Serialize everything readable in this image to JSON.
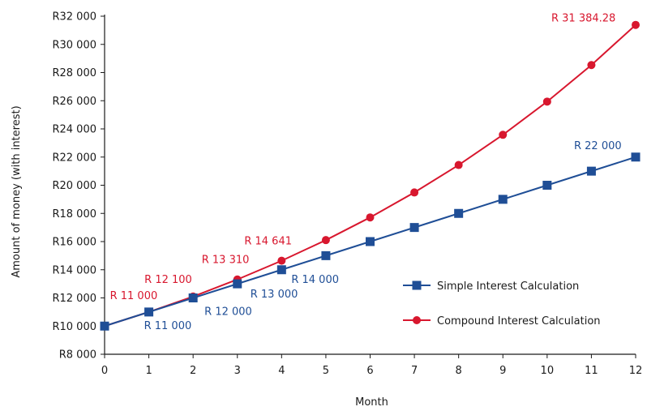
{
  "chart_data": {
    "type": "line",
    "title": "",
    "xlabel": "Month",
    "ylabel": "Amount of money (with interest)",
    "x": [
      0,
      1,
      2,
      3,
      4,
      5,
      6,
      7,
      8,
      9,
      10,
      11,
      12
    ],
    "xlim": [
      0,
      12
    ],
    "ylim": [
      8000,
      32000
    ],
    "y_ticks": [
      8000,
      10000,
      12000,
      14000,
      16000,
      18000,
      20000,
      22000,
      24000,
      26000,
      28000,
      30000,
      32000
    ],
    "y_tick_labels": [
      "R8 000",
      "R10 000",
      "R12 000",
      "R14 000",
      "R16 000",
      "R18 000",
      "R20 000",
      "R22 000",
      "R24 000",
      "R26 000",
      "R28 000",
      "R30 000",
      "R32 000"
    ],
    "x_tick_labels": [
      "0",
      "1",
      "2",
      "3",
      "4",
      "5",
      "6",
      "7",
      "8",
      "9",
      "10",
      "11",
      "12"
    ],
    "grid": false,
    "legend_position": "right",
    "series": [
      {
        "name": "Simple Interest Calculation",
        "color": "#1f4e96",
        "marker": "square",
        "values": [
          10000,
          11000,
          12000,
          13000,
          14000,
          15000,
          16000,
          17000,
          18000,
          19000,
          20000,
          21000,
          22000
        ],
        "labels": [
          {
            "index": 1,
            "text": "R 11 000"
          },
          {
            "index": 2,
            "text": "R 12 000"
          },
          {
            "index": 3,
            "text": "R 13 000"
          },
          {
            "index": 4,
            "text": "R 14 000"
          },
          {
            "index": 12,
            "text": "R 22 000"
          }
        ]
      },
      {
        "name": "Compound Interest Calculation",
        "color": "#d8172e",
        "marker": "circle",
        "values": [
          10000,
          11000,
          12100,
          13310,
          14641,
          16105.1,
          17715.61,
          19487.17,
          21435.89,
          23579.48,
          25937.42,
          28531.17,
          31384.28
        ],
        "labels": [
          {
            "index": 1,
            "text": "R 11 000"
          },
          {
            "index": 2,
            "text": "R 12 100"
          },
          {
            "index": 3,
            "text": "R 13 310"
          },
          {
            "index": 4,
            "text": "R 14 641"
          },
          {
            "index": 12,
            "text": "R 31 384.28"
          }
        ]
      }
    ]
  }
}
